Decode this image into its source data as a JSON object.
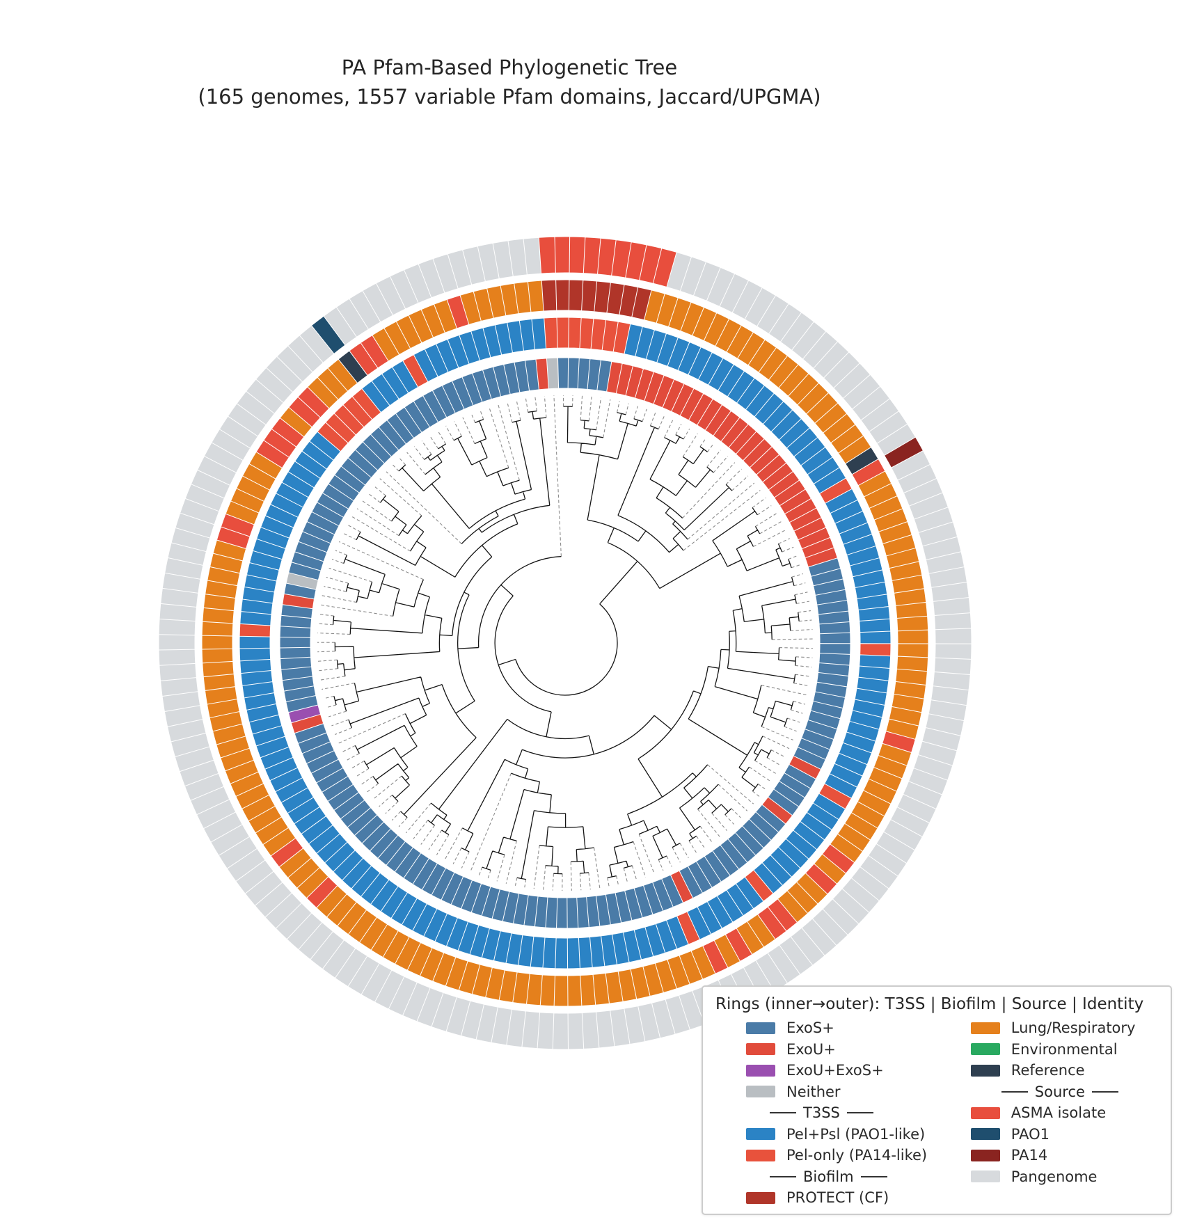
{
  "title": {
    "line1": "PA Pfam-Based Phylogenetic Tree",
    "line2": "(165 genomes, 1557 variable Pfam domains, Jaccard/UPGMA)"
  },
  "legend": {
    "title": "Rings (inner→outer): T3SS | Biofilm | Source | Identity",
    "columns": [
      [
        {
          "kind": "item",
          "label": "ExoS+",
          "color": "#4a7ba7"
        },
        {
          "kind": "item",
          "label": "ExoU+",
          "color": "#e14b3b"
        },
        {
          "kind": "item",
          "label": "ExoU+ExoS+",
          "color": "#9a4fb0"
        },
        {
          "kind": "item",
          "label": "Neither",
          "color": "#b9bec2"
        },
        {
          "kind": "divider",
          "label": "T3SS"
        },
        {
          "kind": "item",
          "label": "Pel+Psl (PAO1-like)",
          "color": "#2b83c5"
        },
        {
          "kind": "item",
          "label": "Pel-only (PA14-like)",
          "color": "#e8523c"
        },
        {
          "kind": "divider",
          "label": "Biofilm"
        },
        {
          "kind": "item",
          "label": "PROTECT (CF)",
          "color": "#b03529"
        }
      ],
      [
        {
          "kind": "item",
          "label": "Lung/Respiratory",
          "color": "#e5801c"
        },
        {
          "kind": "item",
          "label": "Environmental",
          "color": "#29a960"
        },
        {
          "kind": "item",
          "label": "Reference",
          "color": "#2e3f50"
        },
        {
          "kind": "divider",
          "label": "Source"
        },
        {
          "kind": "item",
          "label": "ASMA isolate",
          "color": "#e84e3d"
        },
        {
          "kind": "item",
          "label": "PAO1",
          "color": "#1f4e6e"
        },
        {
          "kind": "item",
          "label": "PA14",
          "color": "#8a2420"
        },
        {
          "kind": "item",
          "label": "Pangenome",
          "color": "#d7dadd"
        }
      ]
    ]
  },
  "chart_data": {
    "type": "heatmap",
    "subtype": "circular UPGMA dendrogram with categorical annotation rings",
    "title": "PA Pfam-Based Phylogenetic Tree (165 genomes, 1557 variable Pfam domains, Jaccard/UPGMA)",
    "n_leaves": 165,
    "layout": {
      "start": "12 o'clock",
      "direction": "clockwise",
      "angle_offset_deg": -1.5,
      "rings_inner_to_outer": [
        "T3SS",
        "Biofilm",
        "Source",
        "Identity"
      ],
      "legend_position": "bottom-right",
      "tree_style": "solid black internal branches, dashed gray leaf extension lines, empty center"
    },
    "palette": {
      "ExoS+": "#4a7ba7",
      "ExoU+": "#e14b3b",
      "ExoU+ExoS+": "#9a4fb0",
      "Neither": "#b9bec2",
      "Pel+Psl (PAO1-like)": "#2b83c5",
      "Pel-only (PA14-like)": "#e8523c",
      "PROTECT (CF)": "#b03529",
      "Lung/Respiratory": "#e5801c",
      "Environmental": "#29a960",
      "Reference": "#2e3f50",
      "ASMA isolate": "#e84e3d",
      "PAO1": "#1f4e6e",
      "PA14": "#8a2420",
      "Pangenome": "#d7dadd"
    },
    "rings": [
      {
        "name": "T3SS",
        "runs": [
          [
            "ExoS+",
            5
          ],
          [
            "ExoU+",
            29
          ],
          [
            "ExoS+",
            20
          ],
          [
            "ExoU+",
            1
          ],
          [
            "ExoS+",
            4
          ],
          [
            "ExoU+",
            1
          ],
          [
            "ExoS+",
            11
          ],
          [
            "ExoU+",
            1
          ],
          [
            "ExoS+",
            44
          ],
          [
            "ExoU+",
            1
          ],
          [
            "ExoU+ExoS+",
            1
          ],
          [
            "ExoS+",
            10
          ],
          [
            "ExoU+",
            1
          ],
          [
            "ExoS+",
            1
          ],
          [
            "Neither",
            1
          ],
          [
            "ExoS+",
            32
          ],
          [
            "ExoU+",
            1
          ],
          [
            "Neither",
            1
          ]
        ]
      },
      {
        "name": "Biofilm",
        "runs": [
          [
            "Pel-only (PA14-like)",
            6
          ],
          [
            "Pel+Psl (PAO1-like)",
            22
          ],
          [
            "Pel-only (PA14-like)",
            1
          ],
          [
            "Pel+Psl (PAO1-like)",
            13
          ],
          [
            "Pel-only (PA14-like)",
            1
          ],
          [
            "Pel+Psl (PAO1-like)",
            12
          ],
          [
            "Pel-only (PA14-like)",
            1
          ],
          [
            "Pel+Psl (PAO1-like)",
            9
          ],
          [
            "Pel-only (PA14-like)",
            1
          ],
          [
            "Pel+Psl (PAO1-like)",
            6
          ],
          [
            "Pel-only (PA14-like)",
            1
          ],
          [
            "Pel+Psl (PAO1-like)",
            52
          ],
          [
            "Pel-only (PA14-like)",
            1
          ],
          [
            "Pel+Psl (PAO1-like)",
            17
          ],
          [
            "Pel-only (PA14-like)",
            5
          ],
          [
            "Pel+Psl (PAO1-like)",
            4
          ],
          [
            "Pel-only (PA14-like)",
            1
          ],
          [
            "Pel+Psl (PAO1-like)",
            11
          ],
          [
            "Pel-only (PA14-like)",
            1
          ]
        ]
      },
      {
        "name": "Source",
        "runs": [
          [
            "PROTECT (CF)",
            7
          ],
          [
            "Lung/Respiratory",
            20
          ],
          [
            "Reference",
            1
          ],
          [
            "ASMA isolate",
            1
          ],
          [
            "Lung/Respiratory",
            20
          ],
          [
            "ASMA isolate",
            1
          ],
          [
            "Lung/Respiratory",
            9
          ],
          [
            "ASMA isolate",
            1
          ],
          [
            "Lung/Respiratory",
            1
          ],
          [
            "ASMA isolate",
            1
          ],
          [
            "Lung/Respiratory",
            3
          ],
          [
            "ASMA isolate",
            2
          ],
          [
            "Lung/Respiratory",
            2
          ],
          [
            "ASMA isolate",
            1
          ],
          [
            "Lung/Respiratory",
            1
          ],
          [
            "ASMA isolate",
            1
          ],
          [
            "Lung/Respiratory",
            31
          ],
          [
            "ASMA isolate",
            1
          ],
          [
            "Lung/Respiratory",
            3
          ],
          [
            "ASMA isolate",
            1
          ],
          [
            "Lung/Respiratory",
            24
          ],
          [
            "ASMA isolate",
            2
          ],
          [
            "Lung/Respiratory",
            5
          ],
          [
            "ASMA isolate",
            3
          ],
          [
            "Lung/Respiratory",
            1
          ],
          [
            "ASMA isolate",
            2
          ],
          [
            "Lung/Respiratory",
            3
          ],
          [
            "Reference",
            1
          ],
          [
            "ASMA isolate",
            2
          ],
          [
            "Lung/Respiratory",
            6
          ],
          [
            "ASMA isolate",
            1
          ],
          [
            "Lung/Respiratory",
            6
          ],
          [
            "PROTECT (CF)",
            1
          ]
        ]
      },
      {
        "name": "Identity",
        "runs": [
          [
            "ASMA isolate",
            8
          ],
          [
            "Pangenome",
            20
          ],
          [
            "PA14",
            1
          ],
          [
            "Pangenome",
            119
          ],
          [
            "PAO1",
            1
          ],
          [
            "Pangenome",
            15
          ],
          [
            "ASMA isolate",
            1
          ]
        ]
      }
    ]
  }
}
